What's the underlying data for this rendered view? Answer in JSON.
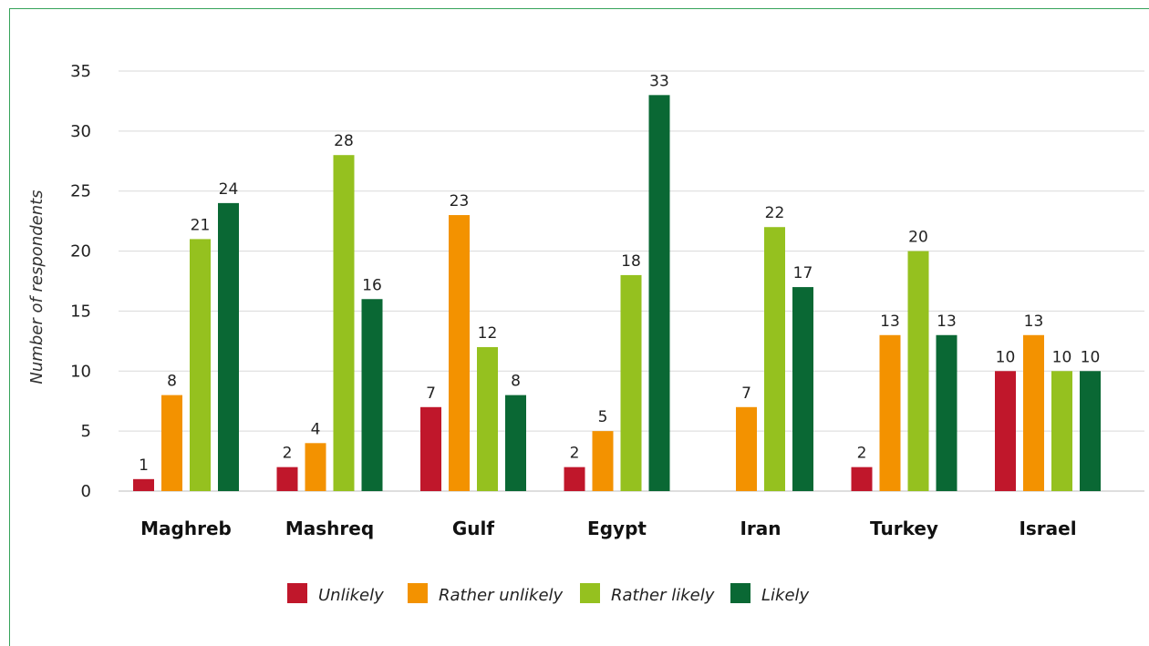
{
  "chart_data": {
    "type": "bar",
    "ylabel": "Number of respondents",
    "ylim": [
      0,
      35
    ],
    "yticks": [
      0,
      5,
      10,
      15,
      20,
      25,
      30,
      35
    ],
    "grid": true,
    "legend_position": "bottom",
    "categories": [
      "Maghreb",
      "Mashreq",
      "Gulf",
      "Egypt",
      "Iran",
      "Turkey",
      "Israel"
    ],
    "series": [
      {
        "name": "Unlikely",
        "color": "#c0172b",
        "values": [
          1,
          2,
          7,
          2,
          0,
          2,
          10
        ],
        "labels": [
          "1",
          "2",
          "7",
          "2",
          "",
          "2",
          "10"
        ]
      },
      {
        "name": "Rather unlikely",
        "color": "#f39200",
        "values": [
          8,
          4,
          23,
          5,
          7,
          13,
          13
        ],
        "labels": [
          "8",
          "4",
          "23",
          "5",
          "7",
          "13",
          "13"
        ]
      },
      {
        "name": "Rather likely",
        "color": "#95c11f",
        "values": [
          21,
          28,
          12,
          18,
          22,
          20,
          10
        ],
        "labels": [
          "21",
          "28",
          "12",
          "18",
          "22",
          "20",
          "10"
        ]
      },
      {
        "name": "Likely",
        "color": "#0a6834",
        "values": [
          24,
          16,
          8,
          33,
          17,
          13,
          10
        ],
        "labels": [
          "24",
          "16",
          "8",
          "33",
          "17",
          "13",
          "10"
        ]
      }
    ]
  }
}
